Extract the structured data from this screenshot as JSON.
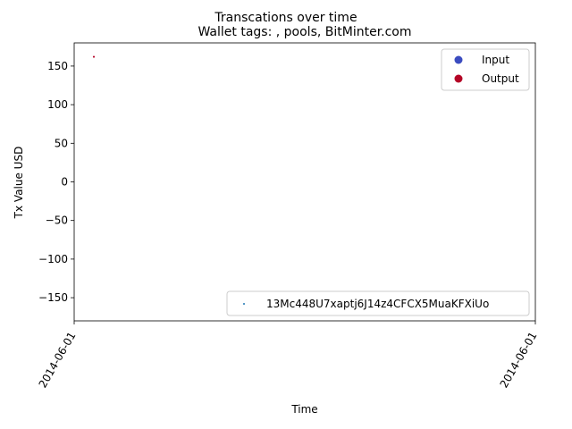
{
  "chart_data": {
    "type": "scatter",
    "suptitle": "Transcations over time",
    "title": "Wallet tags: , pools, BitMinter.com",
    "xlabel": "Time",
    "ylabel": "Tx Value USD",
    "ylim": [
      -180,
      180
    ],
    "yticks": [
      150,
      100,
      50,
      0,
      -50,
      -100,
      -150
    ],
    "xticks": [
      "2014-06-01",
      "2014-06-01"
    ],
    "grid": false,
    "colors": {
      "input": "#3b4cc0",
      "output": "#b40426",
      "address": "#1f77b4"
    },
    "legends": [
      {
        "placement": "top-right",
        "entries": [
          {
            "label": "Input",
            "color": "#3b4cc0"
          },
          {
            "label": "Output",
            "color": "#b40426"
          }
        ]
      },
      {
        "placement": "lower-right",
        "entries": [
          {
            "label": "13Mc448U7xaptj6J14z4CFCX5MuaKFXiUo",
            "color": "#1f77b4"
          }
        ]
      }
    ],
    "series": [
      {
        "name": "Output",
        "x": [
          "2014-06-01"
        ],
        "y": [
          162
        ],
        "color": "#b40426"
      }
    ]
  }
}
